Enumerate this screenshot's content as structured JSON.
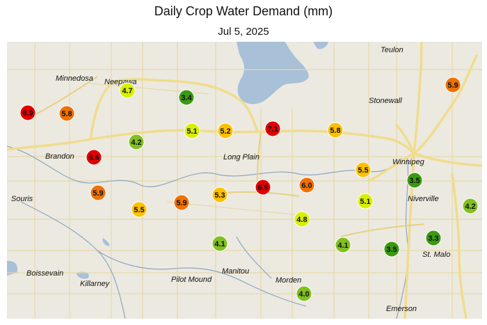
{
  "title": "Daily Crop Water Demand (mm)",
  "subtitle": "Jul 5, 2025",
  "colors": {
    "land": "#ece9e1",
    "water": "#a8c0d8",
    "road_major": "#f0dc8c",
    "road_minor": "#e6d9a6",
    "river": "#8ea6c2",
    "scale": [
      "#e00000",
      "#f07000",
      "#ffc000",
      "#d8f000",
      "#80c020",
      "#3a9a10"
    ]
  },
  "places": [
    "Teulon",
    "Minnedosa",
    "Neepawa",
    "Stonewall",
    "Winnipeg",
    "Brandon",
    "Long Plain",
    "Souris",
    "Niverville",
    "St. Malo",
    "Boissevain",
    "Killarney",
    "Pilot Mound",
    "Manitou",
    "Morden",
    "Emerson"
  ],
  "stations": [
    {
      "value": "6.9",
      "color": "#e00000"
    },
    {
      "value": "5.8",
      "color": "#f07000"
    },
    {
      "value": "4.7",
      "color": "#d8f000"
    },
    {
      "value": "3.4",
      "color": "#3a9a10"
    },
    {
      "value": "5.9",
      "color": "#f07000"
    },
    {
      "value": "4.2",
      "color": "#80c020"
    },
    {
      "value": "5.1",
      "color": "#d8f000"
    },
    {
      "value": "5.2",
      "color": "#ffc000"
    },
    {
      "value": "7.1",
      "color": "#e00000"
    },
    {
      "value": "5.8",
      "color": "#ffc000"
    },
    {
      "value": "6.6",
      "color": "#e00000"
    },
    {
      "value": "5.5",
      "color": "#ffc000"
    },
    {
      "value": "3.5",
      "color": "#3a9a10"
    },
    {
      "value": "5.9",
      "color": "#f07000"
    },
    {
      "value": "5.5",
      "color": "#ffc000"
    },
    {
      "value": "5.9",
      "color": "#f07000"
    },
    {
      "value": "5.3",
      "color": "#ffc000"
    },
    {
      "value": "6.9",
      "color": "#e00000"
    },
    {
      "value": "6.0",
      "color": "#f07000"
    },
    {
      "value": "5.1",
      "color": "#d8f000"
    },
    {
      "value": "4.2",
      "color": "#80c020"
    },
    {
      "value": "4.8",
      "color": "#d8f000"
    },
    {
      "value": "4.1",
      "color": "#80c020"
    },
    {
      "value": "4.1",
      "color": "#80c020"
    },
    {
      "value": "3.5",
      "color": "#3a9a10"
    },
    {
      "value": "3.3",
      "color": "#3a9a10"
    },
    {
      "value": "4.0",
      "color": "#80c020"
    }
  ]
}
